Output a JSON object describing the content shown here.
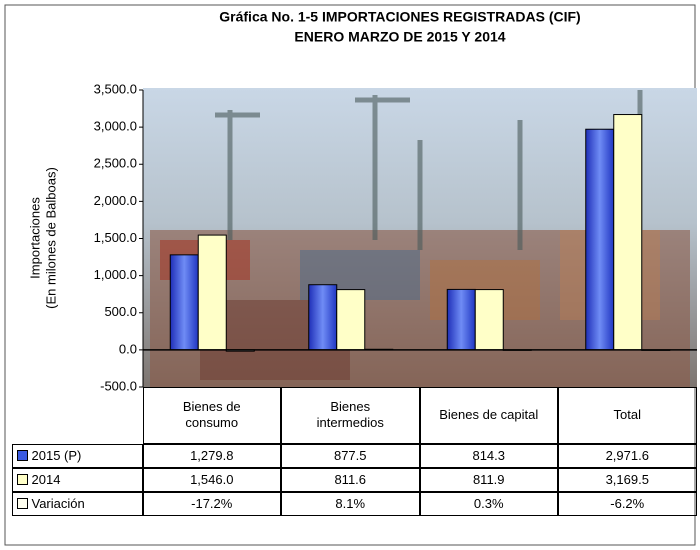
{
  "chart_data": {
    "type": "bar",
    "title": [
      "Gráfica No. 1-5  IMPORTACIONES REGISTRADAS (CIF)",
      "ENERO MARZO DE 2015 Y 2014"
    ],
    "y_label": [
      "Importaciones",
      "(En milones de Balboas)"
    ],
    "categories": [
      "Bienes de\nconsumo",
      "Bienes\nintermedios",
      "Bienes de capital",
      "Total"
    ],
    "series": [
      {
        "name": "2015 (P)",
        "color": "#3a5ae0",
        "values": [
          1279.8,
          877.5,
          814.3,
          2971.6
        ],
        "value_labels": [
          "1,279.8",
          "877.5",
          "814.3",
          "2,971.6"
        ]
      },
      {
        "name": "2014",
        "color": "#ffffc8",
        "values": [
          1546.0,
          811.6,
          811.9,
          3169.5
        ],
        "value_labels": [
          "1,546.0",
          "811.6",
          "811.9",
          "3,169.5"
        ]
      },
      {
        "name": "Variación",
        "color": "#fffff0",
        "values": [
          -17.2,
          8.1,
          0.3,
          -6.2
        ],
        "value_labels": [
          "-17.2%",
          "8.1%",
          "0.3%",
          "-6.2%"
        ]
      }
    ],
    "ylim": [
      -500,
      3500
    ],
    "yticks": [
      {
        "value": -500,
        "label": "-500.0"
      },
      {
        "value": 0,
        "label": "0.0"
      },
      {
        "value": 500,
        "label": "500.0"
      },
      {
        "value": 1000,
        "label": "1,000.0"
      },
      {
        "value": 1500,
        "label": "1,500.0"
      },
      {
        "value": 2000,
        "label": "2,000.0"
      },
      {
        "value": 2500,
        "label": "2,500.0"
      },
      {
        "value": 3000,
        "label": "3,000.0"
      },
      {
        "value": 3500,
        "label": "3,500.0"
      }
    ]
  }
}
